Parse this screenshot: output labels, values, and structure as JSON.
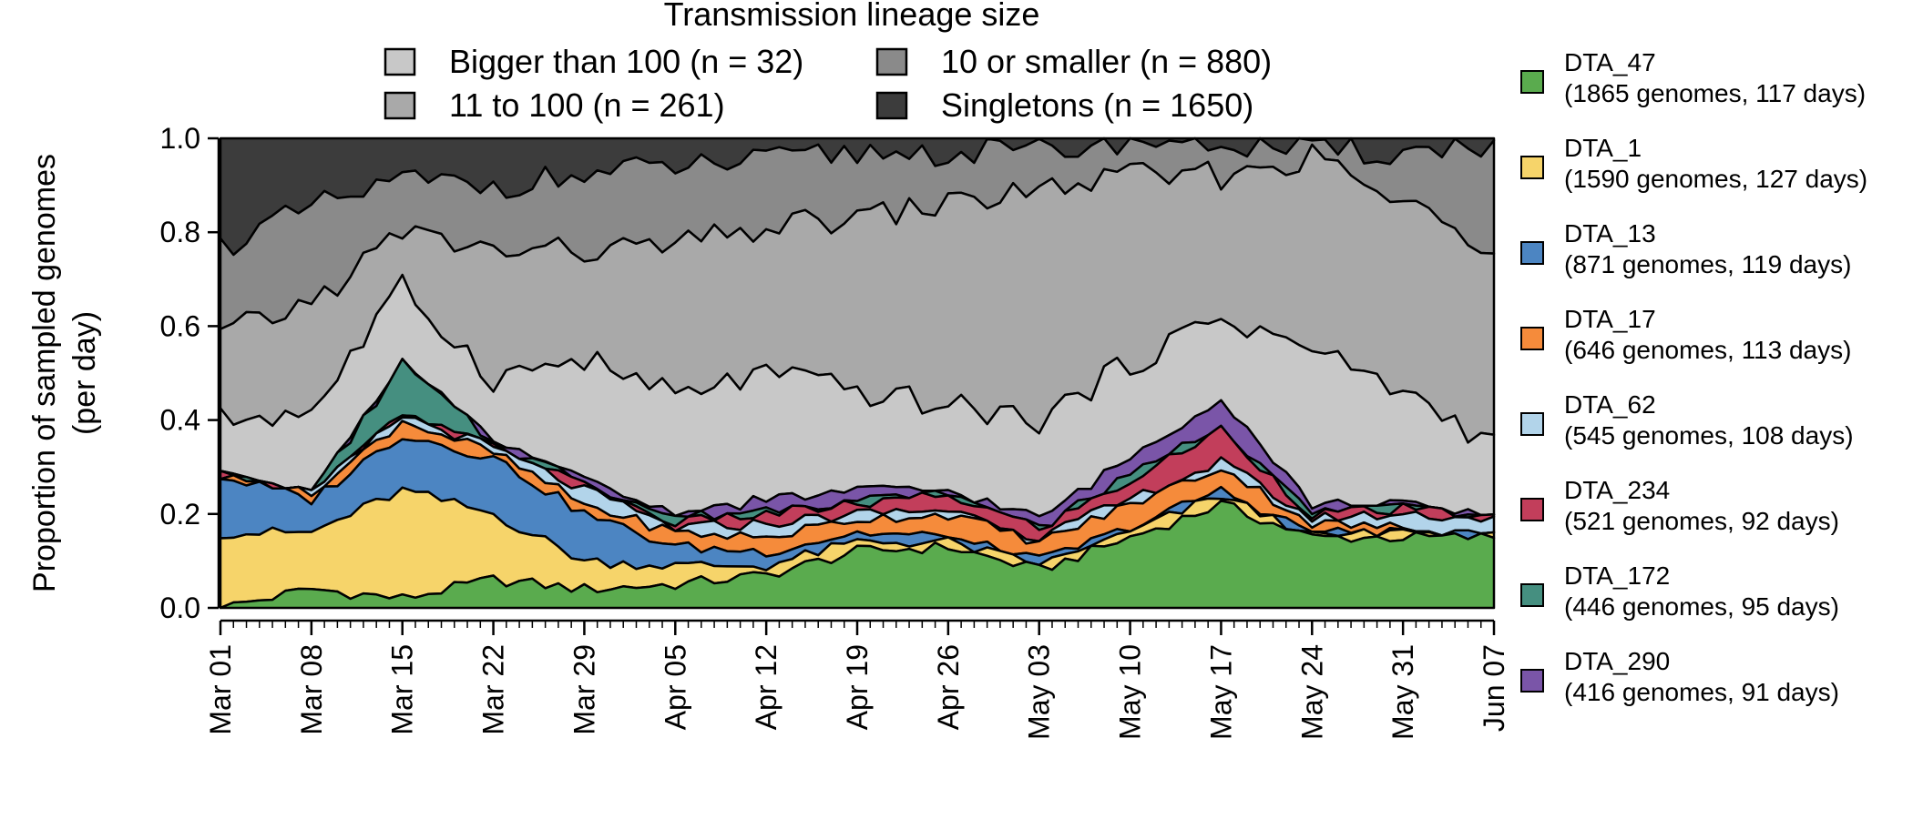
{
  "chart_data": {
    "type": "area",
    "stacked": true,
    "ylabel_lines": [
      "Proportion of sampled genomes",
      "(per day)"
    ],
    "ylim": [
      0,
      1
    ],
    "yticks": [
      "0.0",
      "0.2",
      "0.4",
      "0.6",
      "0.8",
      "1.0"
    ],
    "xticks": [
      "Mar 01",
      "Mar 08",
      "Mar 15",
      "Mar 22",
      "Mar 29",
      "Apr 05",
      "Apr 12",
      "Apr 19",
      "Apr 26",
      "May 03",
      "May 10",
      "May 17",
      "May 24",
      "May 31",
      "Jun 07"
    ],
    "x_start": "Mar 01",
    "x_end": "Jun 07",
    "gray_legend": {
      "title": "Transmission lineage size",
      "items": [
        {
          "label": "Bigger than 100 (n = 32)",
          "color": "#c8c8c8"
        },
        {
          "label": "10 or smaller (n = 880)",
          "color": "#8a8a8a"
        },
        {
          "label": "11 to 100 (n = 261)",
          "color": "#a9a9a9"
        },
        {
          "label": "Singletons (n = 1650)",
          "color": "#3c3c3c"
        }
      ]
    },
    "lineage_legend": [
      {
        "name": "DTA_47",
        "detail": "(1865 genomes, 117 days)",
        "color": "#5aab4e"
      },
      {
        "name": "DTA_1",
        "detail": "(1590 genomes, 127 days)",
        "color": "#f6d46a"
      },
      {
        "name": "DTA_13",
        "detail": "(871 genomes, 119 days)",
        "color": "#4c85c2"
      },
      {
        "name": "DTA_17",
        "detail": "(646 genomes, 113 days)",
        "color": "#f58b3b"
      },
      {
        "name": "DTA_62",
        "detail": "(545 genomes, 108 days)",
        "color": "#b2d4ea"
      },
      {
        "name": "DTA_234",
        "detail": "(521 genomes, 92 days)",
        "color": "#c23e5b"
      },
      {
        "name": "DTA_172",
        "detail": "(446 genomes, 95 days)",
        "color": "#458f80"
      },
      {
        "name": "DTA_290",
        "detail": "(416 genomes, 91 days)",
        "color": "#7a55a8"
      }
    ],
    "series_cumulative_anchors": {
      "DTA_47": [
        [
          0,
          0
        ],
        [
          7,
          0.04
        ],
        [
          14,
          0.02
        ],
        [
          21,
          0.06
        ],
        [
          28,
          0.04
        ],
        [
          35,
          0.05
        ],
        [
          42,
          0.07
        ],
        [
          49,
          0.12
        ],
        [
          56,
          0.13
        ],
        [
          63,
          0.08
        ],
        [
          70,
          0.15
        ],
        [
          77,
          0.22
        ],
        [
          84,
          0.15
        ],
        [
          91,
          0.15
        ],
        [
          98,
          0.15
        ]
      ],
      "DTA_1": [
        [
          0,
          0.16
        ],
        [
          7,
          0.16
        ],
        [
          14,
          0.25
        ],
        [
          21,
          0.2
        ],
        [
          28,
          0.1
        ],
        [
          35,
          0.09
        ],
        [
          42,
          0.09
        ],
        [
          49,
          0.14
        ],
        [
          56,
          0.14
        ],
        [
          63,
          0.09
        ],
        [
          70,
          0.16
        ],
        [
          77,
          0.24
        ],
        [
          84,
          0.15
        ],
        [
          91,
          0.16
        ],
        [
          98,
          0.15
        ]
      ],
      "DTA_13": [
        [
          0,
          0.28
        ],
        [
          7,
          0.23
        ],
        [
          14,
          0.37
        ],
        [
          21,
          0.32
        ],
        [
          28,
          0.2
        ],
        [
          35,
          0.13
        ],
        [
          42,
          0.12
        ],
        [
          49,
          0.16
        ],
        [
          56,
          0.15
        ],
        [
          63,
          0.1
        ],
        [
          70,
          0.17
        ],
        [
          77,
          0.25
        ],
        [
          84,
          0.16
        ],
        [
          91,
          0.16
        ],
        [
          98,
          0.15
        ]
      ],
      "DTA_17": [
        [
          0,
          0.28
        ],
        [
          7,
          0.24
        ],
        [
          14,
          0.4
        ],
        [
          21,
          0.33
        ],
        [
          28,
          0.22
        ],
        [
          35,
          0.16
        ],
        [
          42,
          0.15
        ],
        [
          49,
          0.19
        ],
        [
          56,
          0.2
        ],
        [
          63,
          0.14
        ],
        [
          70,
          0.22
        ],
        [
          77,
          0.3
        ],
        [
          84,
          0.18
        ],
        [
          91,
          0.17
        ],
        [
          98,
          0.15
        ]
      ],
      "DTA_62": [
        [
          0,
          0.28
        ],
        [
          7,
          0.24
        ],
        [
          14,
          0.41
        ],
        [
          21,
          0.34
        ],
        [
          28,
          0.25
        ],
        [
          35,
          0.17
        ],
        [
          42,
          0.18
        ],
        [
          49,
          0.2
        ],
        [
          56,
          0.21
        ],
        [
          63,
          0.15
        ],
        [
          70,
          0.23
        ],
        [
          77,
          0.31
        ],
        [
          84,
          0.19
        ],
        [
          91,
          0.2
        ],
        [
          98,
          0.19
        ]
      ],
      "DTA_234": [
        [
          0,
          0.28
        ],
        [
          7,
          0.24
        ],
        [
          14,
          0.41
        ],
        [
          21,
          0.34
        ],
        [
          28,
          0.26
        ],
        [
          35,
          0.18
        ],
        [
          42,
          0.2
        ],
        [
          49,
          0.22
        ],
        [
          56,
          0.24
        ],
        [
          63,
          0.17
        ],
        [
          70,
          0.27
        ],
        [
          77,
          0.38
        ],
        [
          84,
          0.2
        ],
        [
          91,
          0.21
        ],
        [
          98,
          0.19
        ]
      ],
      "DTA_172": [
        [
          0,
          0.28
        ],
        [
          7,
          0.24
        ],
        [
          14,
          0.52
        ],
        [
          21,
          0.35
        ],
        [
          28,
          0.27
        ],
        [
          35,
          0.19
        ],
        [
          42,
          0.21
        ],
        [
          49,
          0.23
        ],
        [
          56,
          0.24
        ],
        [
          63,
          0.17
        ],
        [
          70,
          0.28
        ],
        [
          77,
          0.39
        ],
        [
          84,
          0.2
        ],
        [
          91,
          0.21
        ],
        [
          98,
          0.19
        ]
      ],
      "DTA_290": [
        [
          0,
          0.28
        ],
        [
          7,
          0.24
        ],
        [
          14,
          0.52
        ],
        [
          21,
          0.35
        ],
        [
          28,
          0.27
        ],
        [
          35,
          0.2
        ],
        [
          42,
          0.23
        ],
        [
          49,
          0.25
        ],
        [
          56,
          0.25
        ],
        [
          63,
          0.19
        ],
        [
          70,
          0.32
        ],
        [
          77,
          0.45
        ],
        [
          84,
          0.22
        ],
        [
          91,
          0.22
        ],
        [
          98,
          0.19
        ]
      ],
      "Bigger than 100": [
        [
          0,
          0.4
        ],
        [
          7,
          0.42
        ],
        [
          14,
          0.68
        ],
        [
          21,
          0.49
        ],
        [
          28,
          0.53
        ],
        [
          35,
          0.45
        ],
        [
          42,
          0.5
        ],
        [
          49,
          0.46
        ],
        [
          56,
          0.43
        ],
        [
          63,
          0.4
        ],
        [
          70,
          0.52
        ],
        [
          77,
          0.62
        ],
        [
          84,
          0.55
        ],
        [
          91,
          0.46
        ],
        [
          98,
          0.35
        ]
      ],
      "11 to 100": [
        [
          0,
          0.58
        ],
        [
          7,
          0.65
        ],
        [
          14,
          0.8
        ],
        [
          21,
          0.76
        ],
        [
          28,
          0.76
        ],
        [
          35,
          0.77
        ],
        [
          42,
          0.81
        ],
        [
          49,
          0.83
        ],
        [
          56,
          0.86
        ],
        [
          63,
          0.89
        ],
        [
          70,
          0.92
        ],
        [
          77,
          0.92
        ],
        [
          84,
          0.96
        ],
        [
          91,
          0.86
        ],
        [
          98,
          0.77
        ]
      ],
      "10 or smaller": [
        [
          0,
          0.77
        ],
        [
          7,
          0.85
        ],
        [
          14,
          0.91
        ],
        [
          21,
          0.9
        ],
        [
          28,
          0.92
        ],
        [
          35,
          0.94
        ],
        [
          42,
          0.95
        ],
        [
          49,
          0.97
        ],
        [
          56,
          0.97
        ],
        [
          63,
          0.97
        ],
        [
          70,
          1.0
        ],
        [
          77,
          0.99
        ],
        [
          84,
          0.97
        ],
        [
          91,
          0.97
        ],
        [
          98,
          0.99
        ]
      ],
      "Singletons": [
        [
          0,
          1.0
        ],
        [
          98,
          1.0
        ]
      ]
    }
  }
}
